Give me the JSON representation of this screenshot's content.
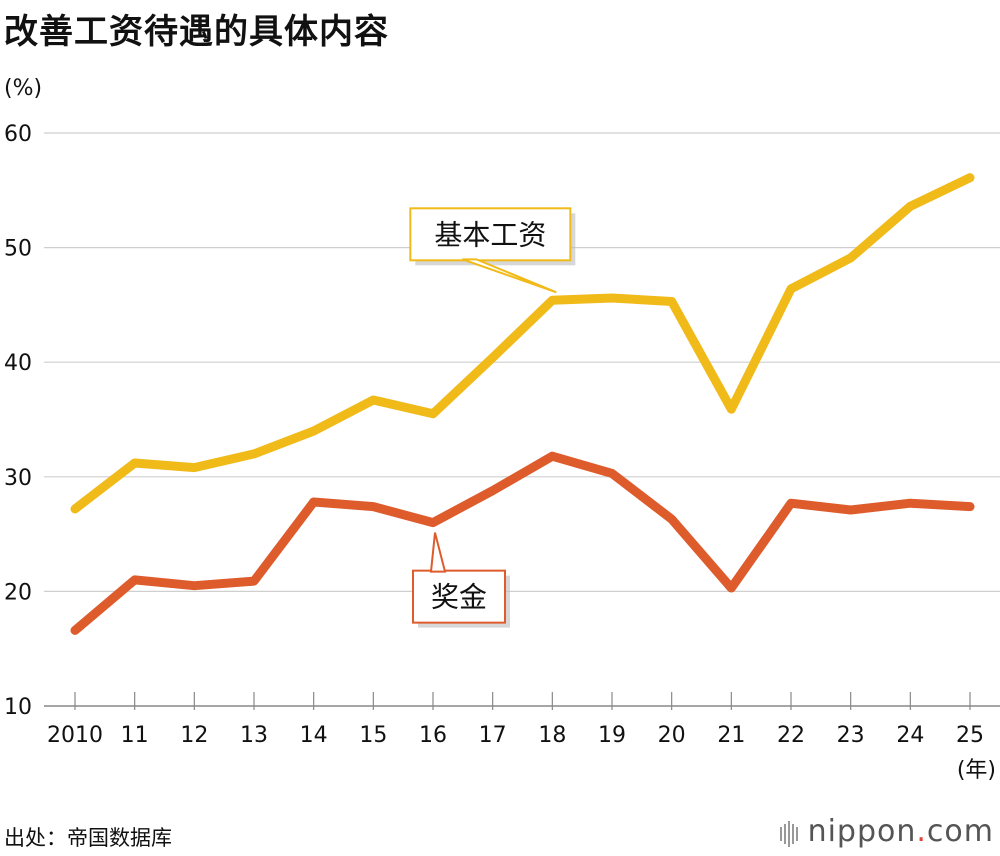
{
  "header": {
    "title": "改善工资待遇的具体内容"
  },
  "axis": {
    "y_unit": "(%)",
    "x_unit": "(年)"
  },
  "footer": {
    "source": "出处：帝国数据库",
    "brand_name": "nippon",
    "brand_dot": ".",
    "brand_tld": "com"
  },
  "colors": {
    "base_salary": "#f0ba19",
    "bonus": "#de5b2c",
    "grid": "#cfcfcf"
  },
  "chart_data": {
    "type": "line",
    "title": "改善工资待遇的具体内容",
    "xlabel": "(年)",
    "ylabel": "(%)",
    "ylim": [
      10,
      60
    ],
    "yticks": [
      10,
      20,
      30,
      40,
      50,
      60
    ],
    "grid": true,
    "categories": [
      "2010",
      "11",
      "12",
      "13",
      "14",
      "15",
      "16",
      "17",
      "18",
      "19",
      "20",
      "21",
      "22",
      "23",
      "24",
      "25"
    ],
    "series": [
      {
        "name": "基本工资",
        "values": [
          27.2,
          31.2,
          30.8,
          32.0,
          34.0,
          36.7,
          35.5,
          40.4,
          45.4,
          45.6,
          45.3,
          35.9,
          46.4,
          49.1,
          53.6,
          56.1
        ],
        "label_anchor_index": 8
      },
      {
        "name": "奖金",
        "values": [
          16.6,
          21.0,
          20.5,
          20.9,
          27.8,
          27.4,
          26.0,
          28.8,
          31.8,
          30.3,
          26.3,
          20.3,
          27.7,
          27.1,
          27.7,
          27.4
        ],
        "label_anchor_index": 6
      }
    ]
  }
}
